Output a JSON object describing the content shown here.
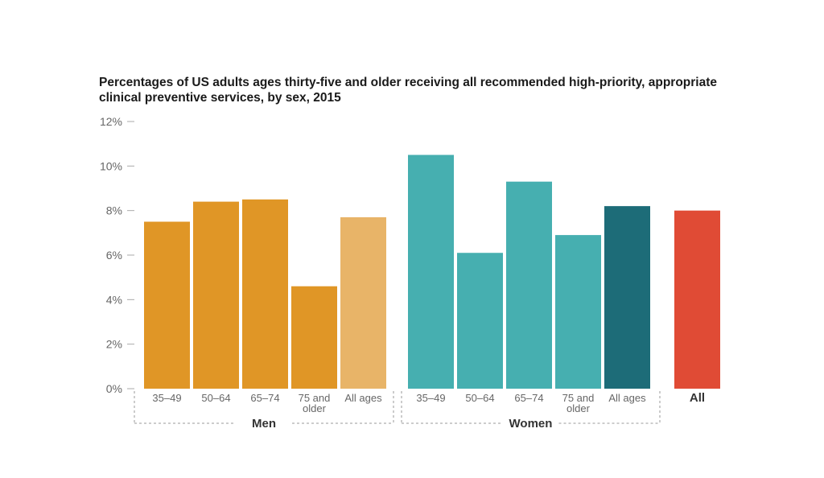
{
  "chart_data": {
    "type": "bar",
    "title": "Percentages of US adults ages thirty-five and older receiving all recommended high-priority, appropriate clinical preventive services, by sex, 2015",
    "xlabel": "",
    "ylabel": "",
    "ylim": [
      0,
      12
    ],
    "yticks": [
      "0%",
      "2%",
      "4%",
      "6%",
      "8%",
      "10%",
      "12%"
    ],
    "grid": false,
    "groups": [
      {
        "name": "Men",
        "categories": [
          [
            "35–49"
          ],
          [
            "50–64"
          ],
          [
            "65–74"
          ],
          [
            "75 and",
            "older"
          ],
          [
            "All ages"
          ]
        ],
        "values": [
          7.5,
          8.4,
          8.5,
          4.6,
          7.7
        ],
        "colors": [
          "#e09626",
          "#e09626",
          "#e09626",
          "#e09626",
          "#e8b468"
        ]
      },
      {
        "name": "Women",
        "categories": [
          [
            "35–49"
          ],
          [
            "50–64"
          ],
          [
            "65–74"
          ],
          [
            "75 and",
            "older"
          ],
          [
            "All ages"
          ]
        ],
        "values": [
          10.5,
          6.1,
          9.3,
          6.9,
          8.2
        ],
        "colors": [
          "#46afb0",
          "#46afb0",
          "#46afb0",
          "#46afb0",
          "#1d6c78"
        ]
      },
      {
        "name": "",
        "categories": [
          [
            "All"
          ]
        ],
        "values": [
          8.0
        ],
        "colors": [
          "#e04b35"
        ],
        "bold_labels": true
      }
    ]
  }
}
